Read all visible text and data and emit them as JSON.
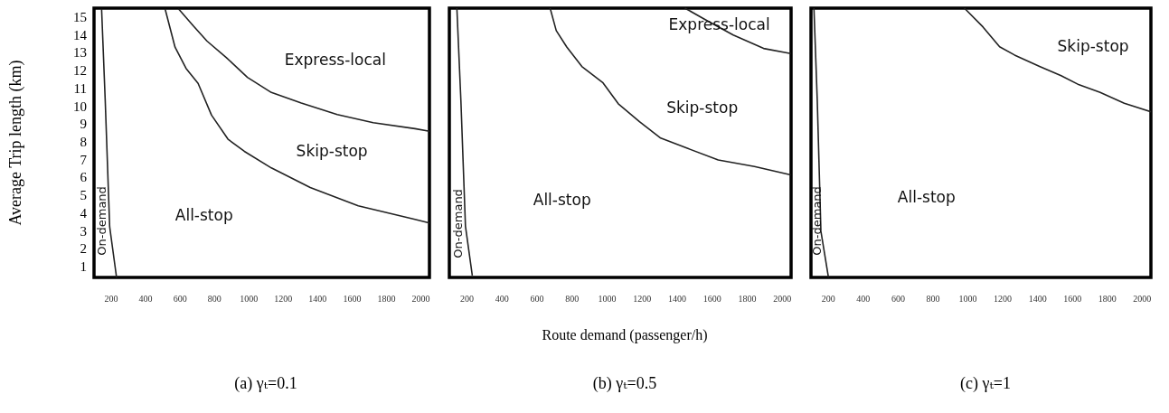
{
  "chart_data": [
    {
      "type": "line",
      "title": "(a) γₜ=0.1",
      "ylabel": "Average Trip length (km)",
      "xlim": [
        100,
        2050
      ],
      "ylim": [
        0.4,
        15.5
      ],
      "xticks": [
        200,
        400,
        600,
        800,
        1000,
        1200,
        1400,
        1600,
        1800,
        2000
      ],
      "yticks": [
        1,
        2,
        3,
        4,
        5,
        6,
        7,
        8,
        9,
        10,
        11,
        12,
        13,
        14,
        15
      ],
      "grid": false,
      "series": [
        {
          "color": "#222222",
          "x": [
            144,
            165,
            191,
            231
          ],
          "values": [
            15.46,
            10.35,
            3.24,
            0.4
          ]
        },
        {
          "color": "#222222",
          "x": [
            513,
            571,
            635,
            705,
            783,
            879,
            974,
            1131,
            1357,
            1636,
            1966,
            2050
          ],
          "values": [
            15.46,
            13.31,
            12.12,
            11.28,
            9.5,
            8.15,
            7.47,
            6.54,
            5.44,
            4.42,
            3.66,
            3.45
          ]
        },
        {
          "color": "#222222",
          "x": [
            591,
            679,
            757,
            870,
            992,
            1131,
            1305,
            1514,
            1723,
            1966,
            2050
          ],
          "values": [
            15.46,
            14.49,
            13.65,
            12.72,
            11.62,
            10.77,
            10.18,
            9.53,
            9.08,
            8.74,
            8.6
          ]
        }
      ],
      "annotations": [
        "Express-local",
        "Skip-stop",
        "All-stop",
        "On-demand"
      ]
    },
    {
      "type": "line",
      "title": "(b) γₜ=0.5",
      "xlabel": "Route demand (passenger/h)",
      "xlim": [
        100,
        2050
      ],
      "ylim": [
        0.4,
        15.5
      ],
      "xticks": [
        200,
        400,
        600,
        800,
        1000,
        1200,
        1400,
        1600,
        1800,
        2000
      ],
      "yticks": [
        1,
        2,
        3,
        4,
        5,
        6,
        7,
        8,
        9,
        10,
        11,
        12,
        13,
        14,
        15
      ],
      "grid": false,
      "tick_labels": "x",
      "series": [
        {
          "color": "#222222",
          "x": [
            143,
            166,
            192,
            231
          ],
          "values": [
            15.5,
            10.31,
            3.27,
            0.51
          ]
        },
        {
          "color": "#222222",
          "x": [
            675,
            710,
            770,
            856,
            977,
            1064,
            1185,
            1306,
            1461,
            1634,
            1841,
            2048
          ],
          "values": [
            15.5,
            14.24,
            13.32,
            12.23,
            11.31,
            10.14,
            9.13,
            8.21,
            7.63,
            6.99,
            6.62,
            6.15
          ]
        },
        {
          "color": "#222222",
          "x": [
            1444,
            1565,
            1720,
            1893,
            2048
          ],
          "values": [
            15.5,
            14.83,
            13.99,
            13.24,
            12.95
          ]
        }
      ],
      "annotations": [
        "Express-local",
        "Skip-stop",
        "All-stop",
        "On-demand"
      ]
    },
    {
      "type": "line",
      "title": "(c) γₜ=1",
      "xlim": [
        100,
        2050
      ],
      "ylim": [
        0.4,
        15.5
      ],
      "xticks": [
        200,
        400,
        600,
        800,
        1000,
        1200,
        1400,
        1600,
        1800,
        2000
      ],
      "yticks": [
        1,
        2,
        3,
        4,
        5,
        6,
        7,
        8,
        9,
        10,
        11,
        12,
        13,
        14,
        15
      ],
      "grid": false,
      "tick_labels": "x",
      "series": [
        {
          "color": "#222222",
          "x": [
            117,
            136,
            157,
            200
          ],
          "values": [
            15.5,
            10.34,
            2.99,
            0.42
          ]
        },
        {
          "color": "#222222",
          "x": [
            980,
            1087,
            1182,
            1268,
            1414,
            1535,
            1638,
            1759,
            1897,
            2050
          ],
          "values": [
            15.5,
            14.44,
            13.33,
            12.87,
            12.22,
            11.71,
            11.2,
            10.77,
            10.17,
            9.69
          ]
        }
      ],
      "annotations": [
        "Skip-stop",
        "All-stop",
        "On-demand"
      ]
    }
  ]
}
